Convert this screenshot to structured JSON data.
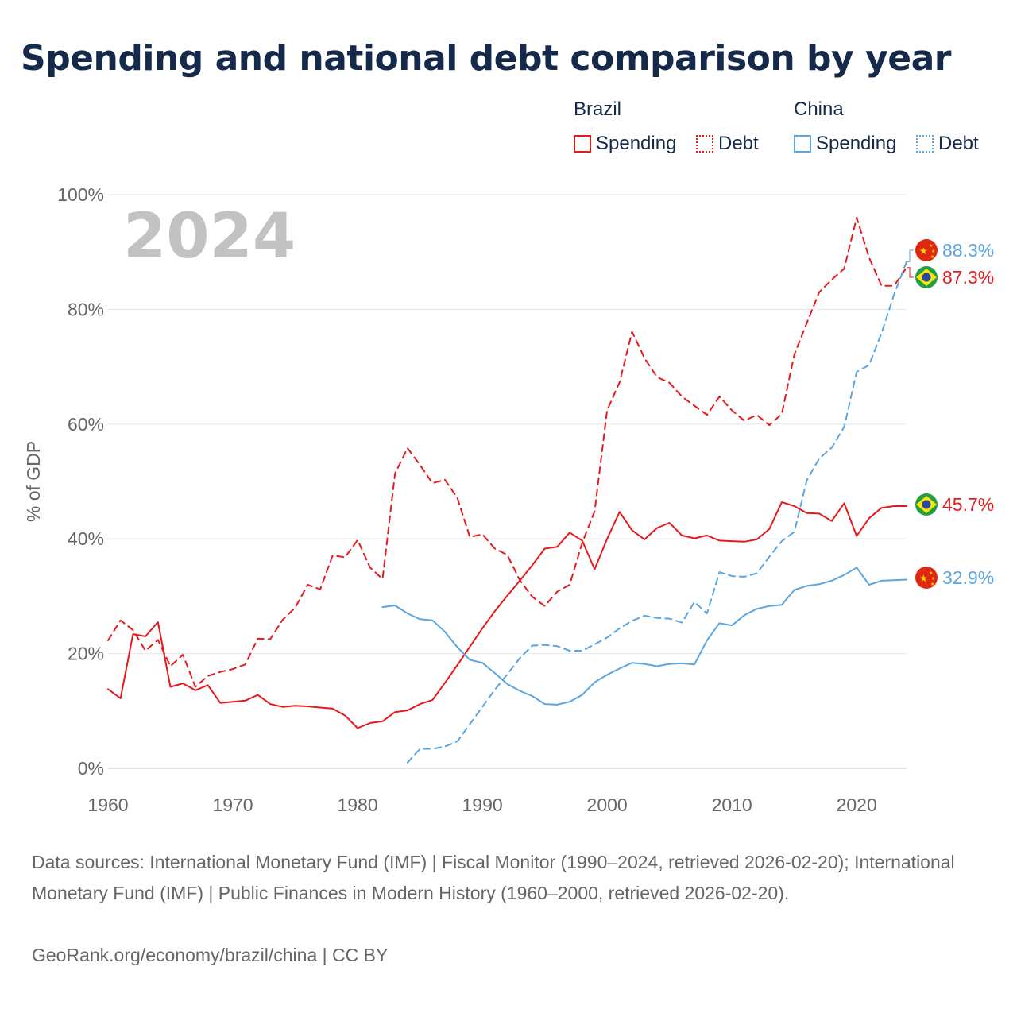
{
  "title": "Spending and national debt comparison by year",
  "footer": {
    "sources": "Data sources: International Monetary Fund (IMF) | Fiscal Monitor (1990–2024, retrieved 2026-02-20); International Monetary Fund (IMF) | Public Finances in Modern History (1960–2000, retrieved 2026-02-20).",
    "credit": "GeoRank.org/economy/brazil/china | CC BY"
  },
  "legend": {
    "brazil": {
      "title": "Brazil",
      "spending": "Spending",
      "debt": "Debt"
    },
    "china": {
      "title": "China",
      "spending": "Spending",
      "debt": "Debt"
    }
  },
  "colors": {
    "brazil": "#e8191d",
    "china": "#5aa5e2",
    "text": "#15294a",
    "axis": "#666666",
    "grid": "#e6e6e6",
    "year_watermark": "#c2c2c2"
  },
  "icons": {
    "brazil_flag": "brazil-flag-icon",
    "china_flag": "china-flag-icon"
  },
  "chart_data": {
    "type": "line",
    "title": "Spending and national debt comparison by year",
    "year_label": "2024",
    "xlabel": "",
    "ylabel": "% of GDP",
    "xlim": [
      1960,
      2024
    ],
    "ylim": [
      0,
      100
    ],
    "x_ticks": [
      "1960",
      "1970",
      "1980",
      "1990",
      "2000",
      "2010",
      "2020"
    ],
    "y_ticks": [
      "0%",
      "20%",
      "40%",
      "60%",
      "80%",
      "100%"
    ],
    "grid": true,
    "legend_position": "top-right",
    "series": [
      {
        "name": "Brazil Spending",
        "country": "Brazil",
        "metric": "Spending",
        "style": "solid",
        "color": "#e8191d",
        "x": [
          1960,
          1961,
          1962,
          1963,
          1964,
          1965,
          1966,
          1967,
          1968,
          1969,
          1970,
          1971,
          1972,
          1973,
          1974,
          1975,
          1976,
          1977,
          1978,
          1979,
          1980,
          1981,
          1982,
          1983,
          1984,
          1985,
          1986,
          1987,
          1988,
          1989,
          1990,
          1991,
          1992,
          1993,
          1994,
          1995,
          1996,
          1997,
          1998,
          1999,
          2000,
          2001,
          2002,
          2003,
          2004,
          2005,
          2006,
          2007,
          2008,
          2009,
          2010,
          2011,
          2012,
          2013,
          2014,
          2015,
          2016,
          2017,
          2018,
          2019,
          2020,
          2021,
          2022,
          2023,
          2024
        ],
        "values": [
          13.8,
          12.2,
          23.4,
          23.0,
          25.5,
          14.2,
          14.8,
          13.6,
          14.5,
          11.4,
          11.6,
          11.8,
          12.8,
          11.2,
          10.7,
          10.9,
          10.8,
          10.6,
          10.4,
          9.2,
          7.0,
          7.9,
          8.2,
          9.8,
          10.1,
          11.2,
          11.9,
          14.9,
          18.0,
          21.2,
          24.4,
          27.4,
          30.1,
          32.7,
          35.4,
          38.3,
          38.6,
          41.1,
          39.7,
          34.7,
          40.0,
          44.7,
          41.5,
          39.9,
          41.9,
          42.8,
          40.6,
          40.1,
          40.6,
          39.7,
          39.6,
          39.5,
          39.9,
          41.7,
          46.4,
          45.7,
          44.5,
          44.4,
          43.1,
          46.2,
          40.5,
          43.6,
          45.4,
          45.7,
          45.7
        ],
        "end_label": "45.7%"
      },
      {
        "name": "Brazil Debt",
        "country": "Brazil",
        "metric": "Debt",
        "style": "dashed",
        "color": "#e8191d",
        "x": [
          1960,
          1961,
          1962,
          1963,
          1964,
          1965,
          1966,
          1967,
          1968,
          1969,
          1970,
          1971,
          1972,
          1973,
          1974,
          1975,
          1976,
          1977,
          1978,
          1979,
          1980,
          1981,
          1982,
          1983,
          1984,
          1985,
          1986,
          1987,
          1988,
          1989,
          1990,
          1991,
          1992,
          1993,
          1994,
          1995,
          1996,
          1997,
          1998,
          1999,
          2000,
          2001,
          2002,
          2003,
          2004,
          2005,
          2006,
          2007,
          2008,
          2009,
          2010,
          2011,
          2012,
          2013,
          2014,
          2015,
          2016,
          2017,
          2018,
          2019,
          2020,
          2021,
          2022,
          2023,
          2024
        ],
        "values": [
          22.3,
          25.8,
          24.1,
          20.5,
          22.4,
          17.8,
          19.8,
          14.2,
          16.1,
          16.8,
          17.3,
          18.1,
          22.6,
          22.5,
          25.9,
          28.0,
          32.0,
          31.2,
          37.1,
          36.8,
          39.8,
          35.0,
          33.0,
          51.4,
          55.8,
          52.9,
          49.7,
          50.3,
          47.1,
          40.3,
          40.8,
          38.3,
          37.2,
          32.8,
          29.9,
          28.3,
          30.8,
          32.0,
          39.3,
          44.8,
          62.4,
          67.3,
          76.1,
          71.5,
          68.2,
          67.2,
          64.8,
          63.2,
          61.6,
          64.8,
          62.4,
          60.6,
          61.6,
          59.8,
          61.8,
          72.1,
          77.6,
          83.0,
          85.2,
          87.1,
          96.0,
          89.0,
          84.1,
          84.1,
          87.3
        ],
        "end_label": "87.3%"
      },
      {
        "name": "China Spending",
        "country": "China",
        "metric": "Spending",
        "style": "solid",
        "color": "#5aa5e2",
        "x": [
          1982,
          1983,
          1984,
          1985,
          1986,
          1987,
          1988,
          1989,
          1990,
          1991,
          1992,
          1993,
          1994,
          1995,
          1996,
          1997,
          1998,
          1999,
          2000,
          2001,
          2002,
          2003,
          2004,
          2005,
          2006,
          2007,
          2008,
          2009,
          2010,
          2011,
          2012,
          2013,
          2014,
          2015,
          2016,
          2017,
          2018,
          2019,
          2020,
          2021,
          2022,
          2023,
          2024
        ],
        "values": [
          28.1,
          28.4,
          27.0,
          26.0,
          25.8,
          23.8,
          21.1,
          18.9,
          18.4,
          16.6,
          14.7,
          13.5,
          12.6,
          11.2,
          11.1,
          11.6,
          12.8,
          15.0,
          16.3,
          17.4,
          18.4,
          18.2,
          17.8,
          18.2,
          18.3,
          18.1,
          22.3,
          25.3,
          24.9,
          26.7,
          27.8,
          28.3,
          28.5,
          31.1,
          31.8,
          32.1,
          32.7,
          33.7,
          35.0,
          32.0,
          32.7,
          32.8,
          32.9
        ],
        "end_label": "32.9%"
      },
      {
        "name": "China Debt",
        "country": "China",
        "metric": "Debt",
        "style": "dashed",
        "color": "#5aa5e2",
        "x": [
          1984,
          1985,
          1986,
          1987,
          1988,
          1989,
          1990,
          1991,
          1992,
          1993,
          1994,
          1995,
          1996,
          1997,
          1998,
          1999,
          2000,
          2001,
          2002,
          2003,
          2004,
          2005,
          2006,
          2007,
          2008,
          2009,
          2010,
          2011,
          2012,
          2013,
          2014,
          2015,
          2016,
          2017,
          2018,
          2019,
          2020,
          2021,
          2022,
          2023,
          2024
        ],
        "values": [
          1.0,
          3.4,
          3.4,
          3.8,
          4.7,
          7.7,
          10.7,
          13.7,
          16.4,
          19.2,
          21.4,
          21.5,
          21.3,
          20.5,
          20.5,
          21.6,
          22.8,
          24.4,
          25.7,
          26.6,
          26.2,
          26.1,
          25.4,
          29.0,
          27.0,
          34.2,
          33.5,
          33.4,
          34.0,
          36.9,
          39.6,
          41.2,
          50.2,
          54.0,
          55.9,
          59.5,
          69.1,
          70.3,
          75.9,
          82.6,
          88.3
        ],
        "end_label": "88.3%"
      }
    ]
  }
}
